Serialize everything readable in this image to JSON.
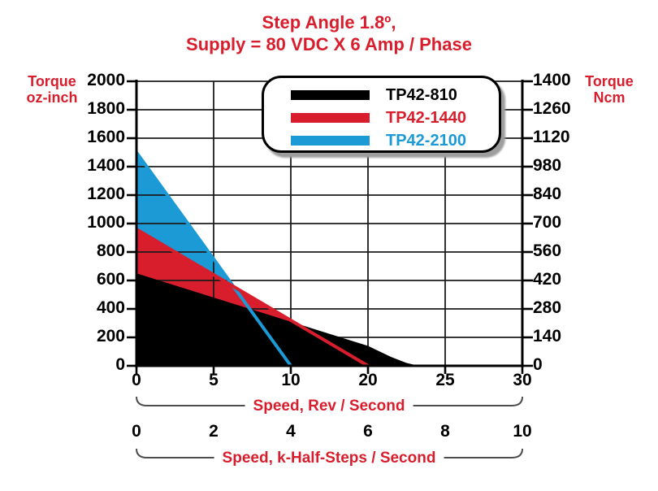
{
  "colors": {
    "red": "#d81e2d",
    "blue": "#1b9ad6",
    "black": "#000000"
  },
  "title": {
    "line1": "Step Angle 1.8º,",
    "line2": "Supply = 80 VDC X 6 Amp / Phase"
  },
  "axis_left": {
    "label_line1": "Torque",
    "label_line2": "oz-inch",
    "ticks": [
      "2000",
      "1800",
      "1600",
      "1400",
      "1200",
      "1000",
      "800",
      "600",
      "400",
      "200",
      "0"
    ]
  },
  "axis_right": {
    "label_line1": "Torque",
    "label_line2": "Ncm",
    "ticks": [
      "1400",
      "1260",
      "1120",
      "980",
      "840",
      "700",
      "560",
      "420",
      "280",
      "140",
      "0"
    ]
  },
  "axis_bottom": {
    "ticks": [
      "0",
      "5",
      "10",
      "20",
      "25",
      "30"
    ],
    "label": "Speed, Rev / Second"
  },
  "axis_bottom2": {
    "ticks": [
      "0",
      "2",
      "4",
      "6",
      "8",
      "10"
    ],
    "label": "Speed, k-Half-Steps / Second"
  },
  "legend": {
    "items": [
      {
        "label": "TP42-810",
        "color": "#000000"
      },
      {
        "label": "TP42-1440",
        "color": "#d81e2d"
      },
      {
        "label": "TP42-2100",
        "color": "#1b9ad6"
      }
    ]
  },
  "chart_data": {
    "type": "area",
    "title": "Step Angle 1.8º, Supply = 80 VDC X 6 Amp / Phase",
    "x_axis": {
      "label": "Speed, Rev / Second",
      "tick_labels": [
        0,
        5,
        10,
        20,
        25,
        30
      ],
      "note": "ticks evenly spaced exactly as printed (no 15 label)"
    },
    "x_axis2": {
      "label": "Speed, k-Half-Steps / Second",
      "tick_labels": [
        0,
        2,
        4,
        6,
        8,
        10
      ]
    },
    "y_axis_left": {
      "label": "Torque oz-inch",
      "range": [
        0,
        2000
      ],
      "tick_step": 200,
      "grid": true
    },
    "y_axis_right": {
      "label": "Torque Ncm",
      "range": [
        0,
        1400
      ],
      "tick_step": 140
    },
    "legend_position": "top-center",
    "series": [
      {
        "name": "TP42-810",
        "color": "#000000",
        "points": [
          [
            0,
            650
          ],
          [
            20,
            140
          ],
          [
            21.5,
            62
          ],
          [
            22.5,
            20
          ],
          [
            23.3,
            0
          ]
        ]
      },
      {
        "name": "TP42-1440",
        "color": "#d81e2d",
        "points": [
          [
            0,
            960
          ],
          [
            20,
            0
          ]
        ]
      },
      {
        "name": "TP42-2100",
        "color": "#1b9ad6",
        "points": [
          [
            0,
            1500
          ],
          [
            10,
            0
          ]
        ]
      }
    ]
  }
}
